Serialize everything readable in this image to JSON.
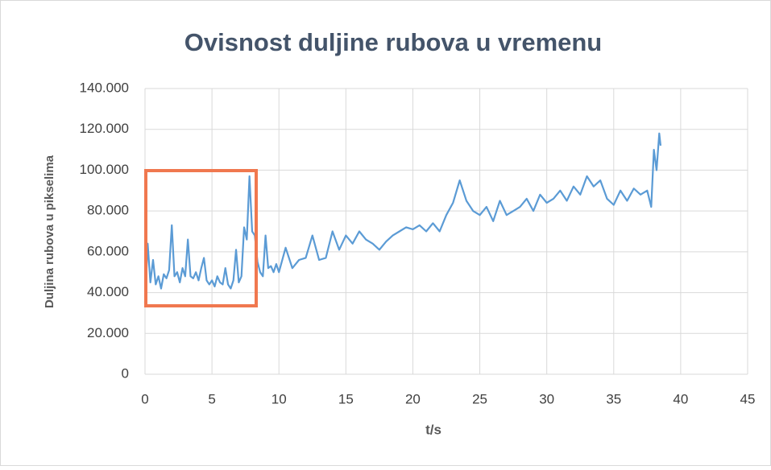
{
  "chart_data": {
    "type": "line",
    "title": "Ovisnost duljine rubova u vremenu",
    "xlabel": "t/s",
    "ylabel": "Duljina rubova u pikselima",
    "xlim": [
      0,
      45
    ],
    "xticks": [
      0,
      5,
      10,
      15,
      20,
      25,
      30,
      35,
      40,
      45
    ],
    "ylim": [
      0,
      140000
    ],
    "yticks": [
      0,
      {
        "value": 20000,
        "label": "20.000"
      },
      {
        "value": 40000,
        "label": "40.000"
      },
      {
        "value": 60000,
        "label": "60.000"
      },
      {
        "value": 80000,
        "label": "80.000"
      },
      {
        "value": 100000,
        "label": "100.000"
      },
      {
        "value": 120000,
        "label": "120.000"
      },
      {
        "value": 140000,
        "label": "140.000"
      }
    ],
    "grid": true,
    "series": [
      {
        "name": "Duljina rubova",
        "color": "#5b9bd5",
        "x": [
          0,
          0.2,
          0.4,
          0.6,
          0.8,
          1.0,
          1.2,
          1.4,
          1.6,
          1.8,
          2.0,
          2.2,
          2.4,
          2.6,
          2.8,
          3.0,
          3.2,
          3.4,
          3.6,
          3.8,
          4.0,
          4.2,
          4.4,
          4.6,
          4.8,
          5.0,
          5.2,
          5.4,
          5.6,
          5.8,
          6.0,
          6.2,
          6.4,
          6.6,
          6.8,
          7.0,
          7.2,
          7.4,
          7.6,
          7.8,
          8.0,
          8.2,
          8.4,
          8.6,
          8.8,
          9.0,
          9.2,
          9.4,
          9.6,
          9.8,
          10.0,
          10.5,
          11,
          11.5,
          12,
          12.5,
          13,
          13.5,
          14,
          14.5,
          15,
          15.5,
          16,
          16.5,
          17,
          17.5,
          18,
          18.5,
          19,
          19.5,
          20,
          20.5,
          21,
          21.5,
          22,
          22.5,
          23,
          23.5,
          24,
          24.5,
          25,
          25.5,
          26,
          26.5,
          27,
          27.5,
          28,
          28.5,
          29,
          29.5,
          30,
          30.5,
          31,
          31.5,
          32,
          32.5,
          33,
          33.5,
          34,
          34.5,
          35,
          35.5,
          36,
          36.5,
          37,
          37.5,
          37.8,
          38,
          38.2,
          38.4,
          38.5
        ],
        "values": [
          35000,
          64000,
          45000,
          56000,
          44000,
          48000,
          42000,
          49000,
          47000,
          51000,
          73000,
          48000,
          50000,
          45000,
          52000,
          48000,
          66000,
          48000,
          47000,
          50000,
          46000,
          52000,
          57000,
          46000,
          44000,
          46000,
          43000,
          48000,
          45000,
          44000,
          52000,
          44000,
          42000,
          46000,
          61000,
          45000,
          48000,
          72000,
          66000,
          97000,
          70000,
          68000,
          55000,
          50000,
          48000,
          68000,
          52000,
          53000,
          50000,
          54000,
          50000,
          62000,
          52000,
          56000,
          57000,
          68000,
          56000,
          57000,
          70000,
          61000,
          68000,
          64000,
          70000,
          66000,
          64000,
          61000,
          65000,
          68000,
          70000,
          72000,
          71000,
          73000,
          70000,
          74000,
          70000,
          78000,
          84000,
          95000,
          85000,
          80000,
          78000,
          82000,
          75000,
          85000,
          78000,
          80000,
          82000,
          86000,
          80000,
          88000,
          84000,
          86000,
          90000,
          85000,
          92000,
          88000,
          97000,
          92000,
          95000,
          86000,
          83000,
          90000,
          85000,
          91000,
          88000,
          90000,
          82000,
          110000,
          100000,
          118000,
          112000
        ]
      }
    ]
  }
}
